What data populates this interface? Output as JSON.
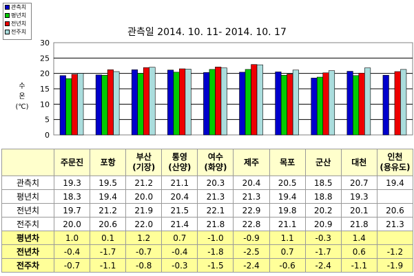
{
  "legend": [
    "관측치",
    "평년치",
    "전년치",
    "전주치"
  ],
  "chart_data": {
    "type": "bar",
    "title": "관측일 2014. 10. 11-  2014. 10. 17",
    "ylabel": [
      "수",
      "온",
      "(℃)"
    ],
    "ylim": [
      0,
      30
    ],
    "yticks": [
      0,
      5,
      10,
      15,
      20,
      25,
      30
    ],
    "grid": true,
    "legend_position": "top-left",
    "categories": [
      "주문진",
      "포항",
      "부산(기장)",
      "통영(산양)",
      "여수(화양)",
      "제주",
      "목포",
      "군산",
      "대천",
      "인천(용유도)"
    ],
    "series": [
      {
        "name": "관측치",
        "color": "#0000cc",
        "values": [
          19.3,
          19.5,
          21.2,
          21.1,
          20.3,
          20.4,
          20.5,
          18.5,
          20.7,
          19.4
        ]
      },
      {
        "name": "평년치",
        "color": "#00cc00",
        "values": [
          18.3,
          19.4,
          20.0,
          20.4,
          21.3,
          21.3,
          19.4,
          18.8,
          19.3,
          null
        ]
      },
      {
        "name": "전년치",
        "color": "#ee0000",
        "values": [
          19.7,
          21.2,
          21.9,
          21.5,
          22.1,
          22.9,
          19.8,
          20.2,
          20.1,
          20.6
        ]
      },
      {
        "name": "전주치",
        "color": "#aadddd",
        "values": [
          20.0,
          20.6,
          22.0,
          21.4,
          21.8,
          22.8,
          21.1,
          20.9,
          21.8,
          21.3
        ]
      }
    ]
  },
  "table": {
    "header": [
      [
        "주문진"
      ],
      [
        "포항"
      ],
      [
        "부산",
        "(기장)"
      ],
      [
        "통영",
        "(산양)"
      ],
      [
        "여수",
        "(화양)"
      ],
      [
        "제주"
      ],
      [
        "목포"
      ],
      [
        "군산"
      ],
      [
        "대천"
      ],
      [
        "인천",
        "(용유도)"
      ]
    ],
    "rows": [
      {
        "label": "관측치",
        "type": "value",
        "cells": [
          "19.3",
          "19.5",
          "21.2",
          "21.1",
          "20.3",
          "20.4",
          "20.5",
          "18.5",
          "20.7",
          "19.4"
        ]
      },
      {
        "label": "평년치",
        "type": "value",
        "cells": [
          "18.3",
          "19.4",
          "20.0",
          "20.4",
          "21.3",
          "21.3",
          "19.4",
          "18.8",
          "19.3",
          ""
        ]
      },
      {
        "label": "전년치",
        "type": "value",
        "cells": [
          "19.7",
          "21.2",
          "21.9",
          "21.5",
          "22.1",
          "22.9",
          "19.8",
          "20.2",
          "20.1",
          "20.6"
        ]
      },
      {
        "label": "전주치",
        "type": "value",
        "cells": [
          "20.0",
          "20.6",
          "22.0",
          "21.4",
          "21.8",
          "22.8",
          "21.1",
          "20.9",
          "21.8",
          "21.3"
        ]
      },
      {
        "label": "평년차",
        "type": "diff",
        "cells": [
          "1.0",
          "0.1",
          "1.2",
          "0.7",
          "-1.0",
          "-0.9",
          "1.1",
          "-0.3",
          "1.4",
          ""
        ]
      },
      {
        "label": "전년차",
        "type": "diff",
        "cells": [
          "-0.4",
          "-1.7",
          "-0.7",
          "-0.4",
          "-1.8",
          "-2.5",
          "0.7",
          "-1.7",
          "0.6",
          "-1.2"
        ]
      },
      {
        "label": "전주차",
        "type": "diff",
        "cells": [
          "-0.7",
          "-1.1",
          "-0.8",
          "-0.3",
          "-1.5",
          "-2.4",
          "-0.6",
          "-2.4",
          "-1.1",
          "-1.9"
        ]
      }
    ]
  }
}
